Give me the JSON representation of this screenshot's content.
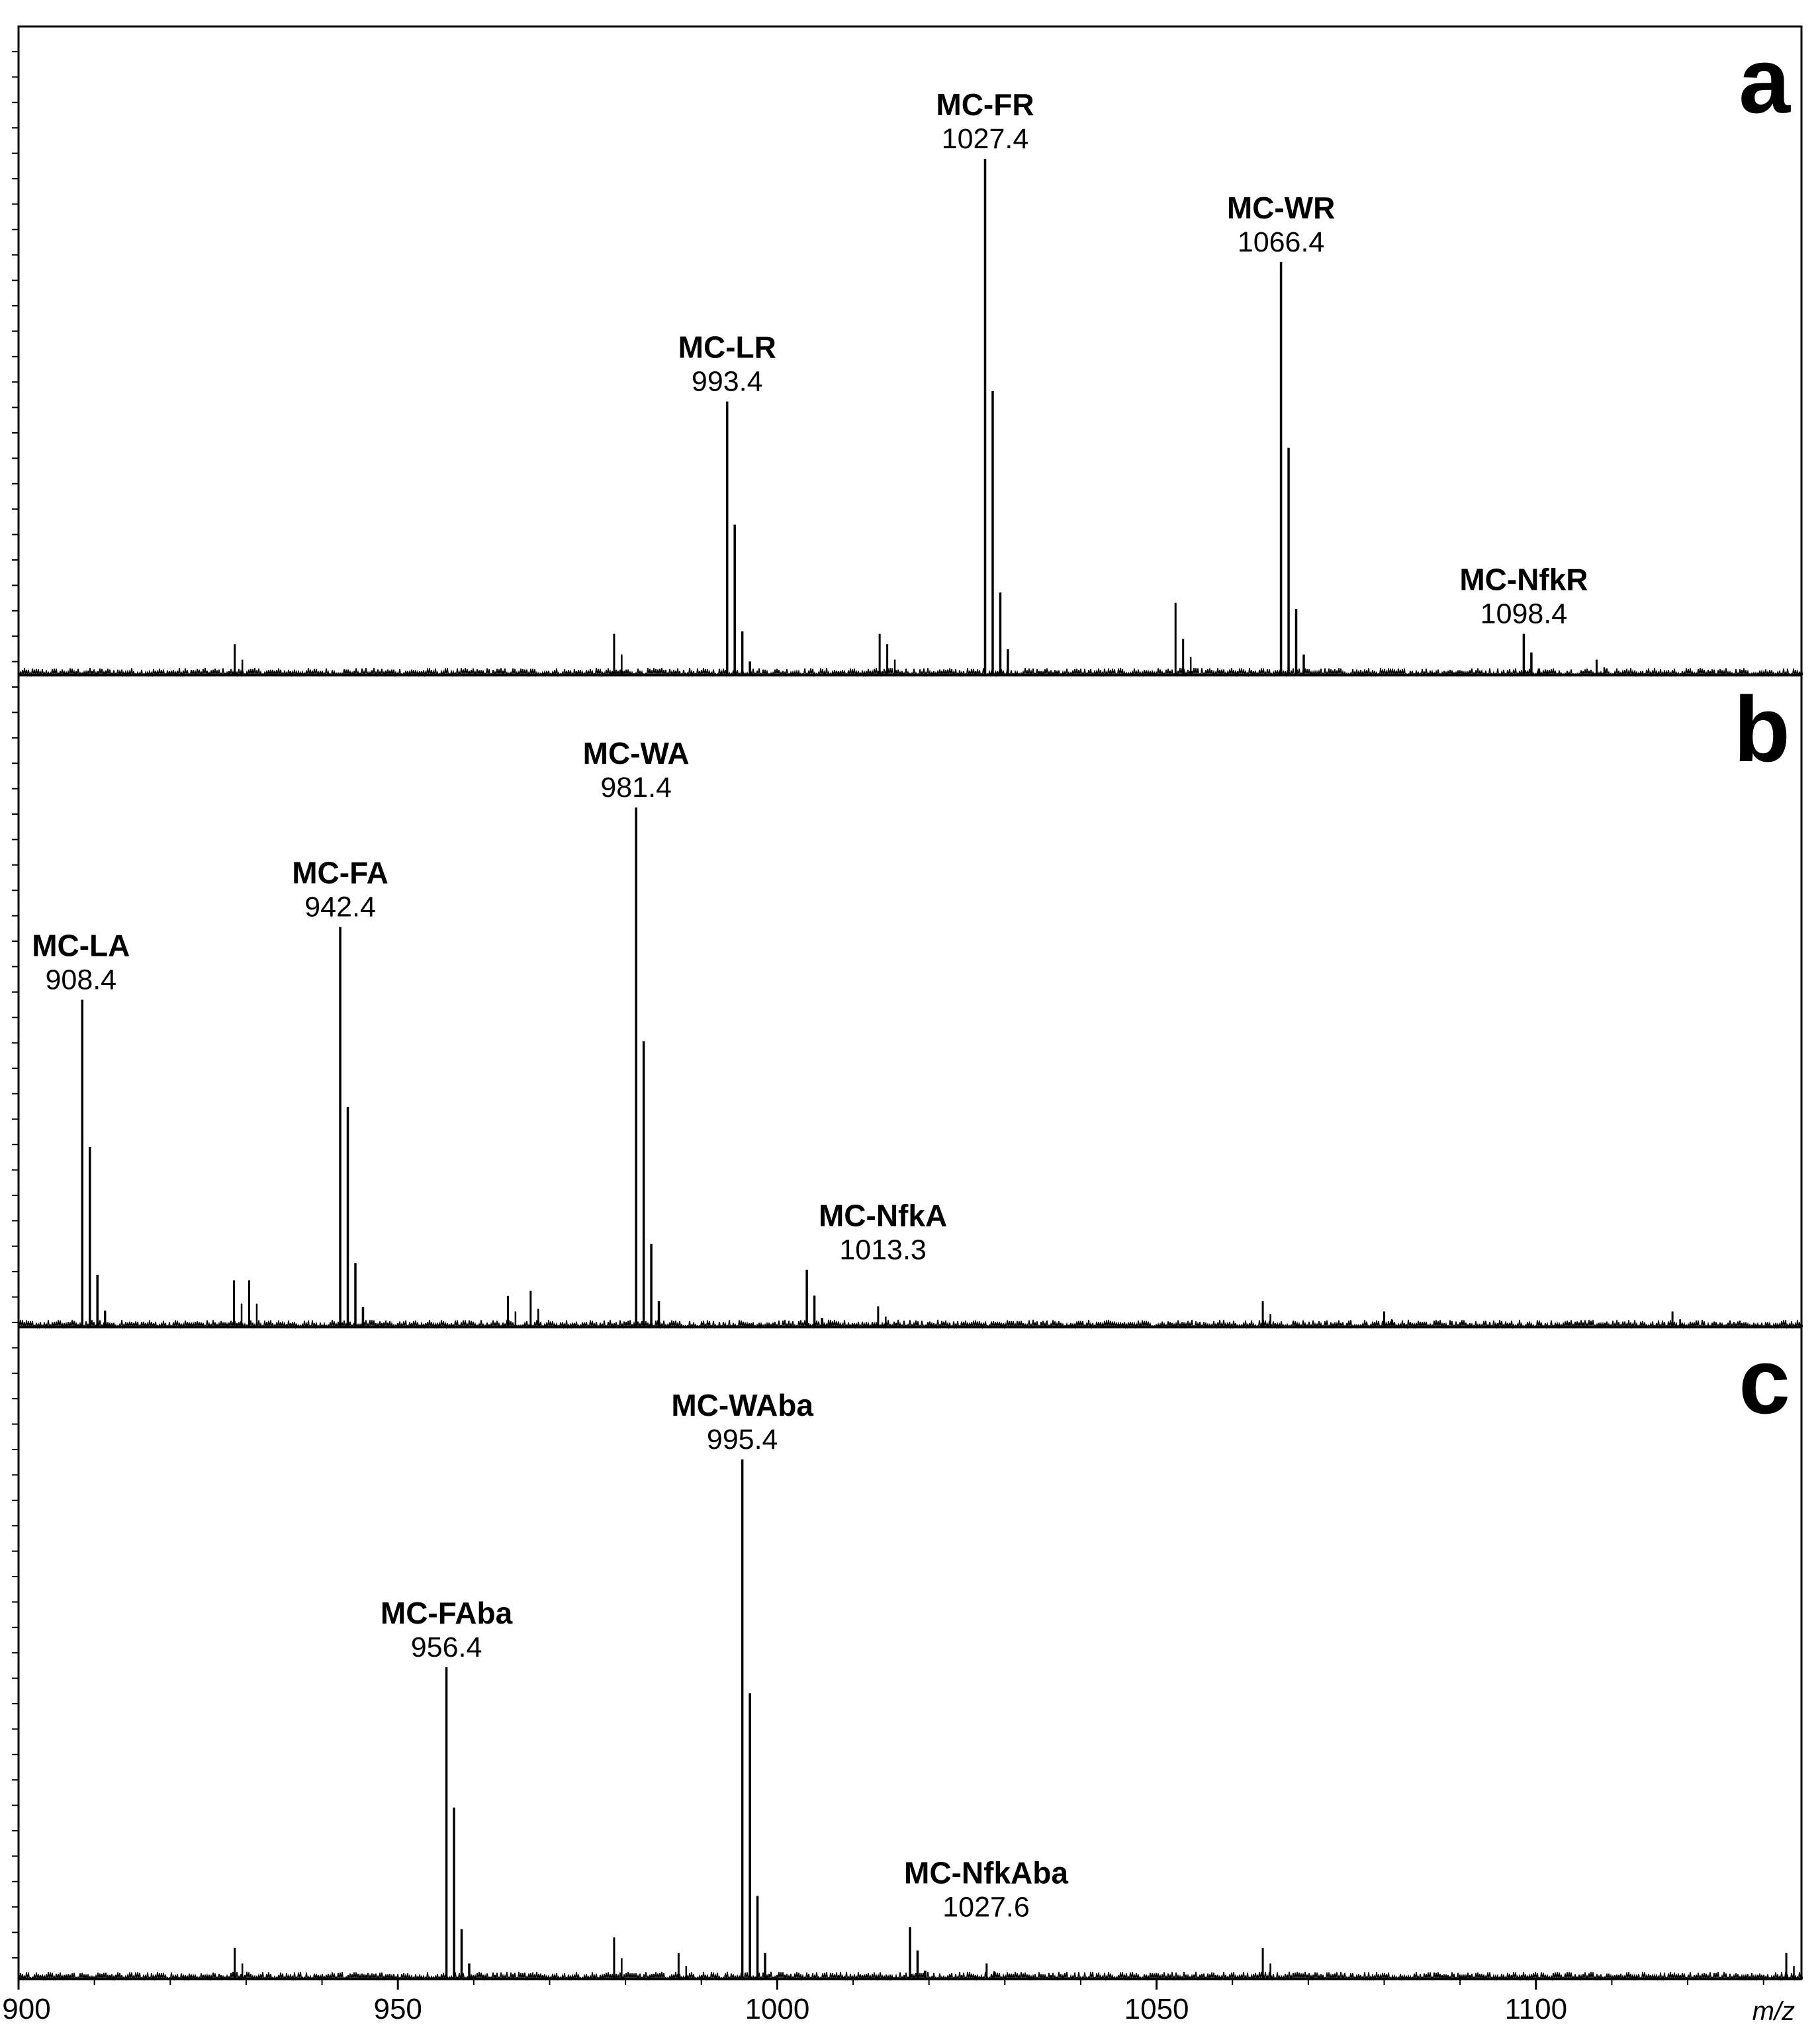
{
  "chart_data": {
    "type": "line",
    "xlabel": "m/z",
    "ylabel": "",
    "xlim": [
      900,
      1135
    ],
    "xticks": [
      "900",
      "950",
      "1000",
      "1050",
      "1100"
    ],
    "grid": false,
    "panels": [
      {
        "label": "a",
        "peaks": [
          {
            "name": "MC-LR",
            "mz": "993.4",
            "x": 993.4,
            "y": 0.53
          },
          {
            "name": "MC-FR",
            "mz": "1027.4",
            "x": 1027.4,
            "y": 1.0
          },
          {
            "name": "MC-WR",
            "mz": "1066.4",
            "x": 1066.4,
            "y": 0.8
          },
          {
            "name": "MC-NfkR",
            "mz": "1098.4",
            "x": 1098.4,
            "y": 0.08
          }
        ],
        "minor_peaks": [
          {
            "x": 928.5,
            "y": 0.06
          },
          {
            "x": 978.5,
            "y": 0.08
          },
          {
            "x": 1013.5,
            "y": 0.08
          },
          {
            "x": 1014.5,
            "y": 0.06
          },
          {
            "x": 1052.5,
            "y": 0.14
          },
          {
            "x": 1053.5,
            "y": 0.07
          },
          {
            "x": 1108.0,
            "y": 0.03
          }
        ]
      },
      {
        "label": "b",
        "peaks": [
          {
            "name": "MC-LA",
            "mz": "908.4",
            "x": 908.4,
            "y": 0.63
          },
          {
            "name": "MC-FA",
            "mz": "942.4",
            "x": 942.4,
            "y": 0.77
          },
          {
            "name": "MC-WA",
            "mz": "981.4",
            "x": 981.4,
            "y": 1.0
          },
          {
            "name": "MC-NfkA",
            "mz": "1013.3",
            "x": 1003.9,
            "y": 0.11
          }
        ],
        "minor_peaks": [
          {
            "x": 928.4,
            "y": 0.09
          },
          {
            "x": 930.4,
            "y": 0.09
          },
          {
            "x": 964.5,
            "y": 0.06
          },
          {
            "x": 967.5,
            "y": 0.07
          },
          {
            "x": 1013.3,
            "y": 0.04
          },
          {
            "x": 1064.0,
            "y": 0.05
          },
          {
            "x": 1080.0,
            "y": 0.03
          },
          {
            "x": 1118.0,
            "y": 0.03
          }
        ]
      },
      {
        "label": "c",
        "peaks": [
          {
            "name": "MC-FAba",
            "mz": "956.4",
            "x": 956.4,
            "y": 0.6
          },
          {
            "name": "MC-WAba",
            "mz": "995.4",
            "x": 995.4,
            "y": 1.0
          },
          {
            "name": "MC-NfkAba",
            "mz": "1027.6",
            "x": 1017.5,
            "y": 0.1
          }
        ],
        "minor_peaks": [
          {
            "x": 928.5,
            "y": 0.06
          },
          {
            "x": 978.5,
            "y": 0.08
          },
          {
            "x": 987.0,
            "y": 0.05
          },
          {
            "x": 1027.6,
            "y": 0.03
          },
          {
            "x": 1064.0,
            "y": 0.06
          },
          {
            "x": 1133.0,
            "y": 0.05
          }
        ]
      }
    ]
  }
}
